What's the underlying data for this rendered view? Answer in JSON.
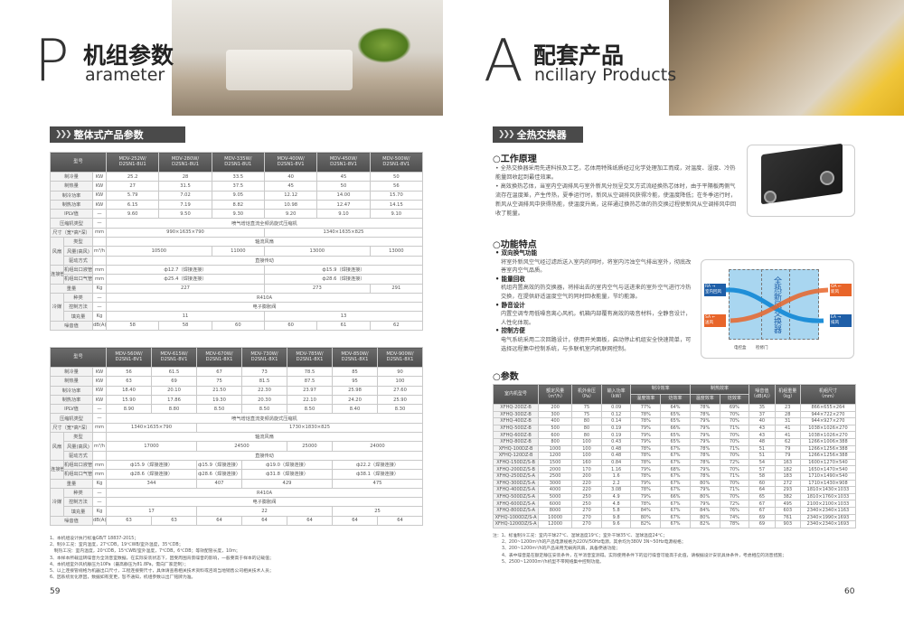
{
  "left": {
    "letter": "P",
    "title": "机组参数",
    "subtitle": "arameter",
    "section": "整体式产品参数",
    "page": "59",
    "table1": {
      "header": "型号",
      "models": [
        "MDV-252W/\nD2SN1-8U1",
        "MDV-280W/\nD2SN1-8U1",
        "MDV-335W/\nD2SN1-8U1",
        "MDV-400W/\nD2SN1-8V1",
        "MDV-450W/\nD2SN1-8V1",
        "MDV-500W/\nD2SN1-8V1"
      ],
      "rows": [
        {
          "label": "制冷量",
          "unit": "KW",
          "cells": [
            [
              "25.2",
              1
            ],
            [
              "28",
              1
            ],
            [
              "33.5",
              1
            ],
            [
              "40",
              1
            ],
            [
              "45",
              1
            ],
            [
              "50",
              1
            ]
          ]
        },
        {
          "label": "制热量",
          "unit": "KW",
          "cells": [
            [
              "27",
              1
            ],
            [
              "31.5",
              1
            ],
            [
              "37.5",
              1
            ],
            [
              "45",
              1
            ],
            [
              "50",
              1
            ],
            [
              "56",
              1
            ]
          ]
        },
        {
          "label": "制冷功率",
          "unit": "KW",
          "cells": [
            [
              "5.79",
              1
            ],
            [
              "7.02",
              1
            ],
            [
              "9.05",
              1
            ],
            [
              "12.12",
              1
            ],
            [
              "14.00",
              1
            ],
            [
              "15.70",
              1
            ]
          ]
        },
        {
          "label": "制热功率",
          "unit": "KW",
          "cells": [
            [
              "6.15",
              1
            ],
            [
              "7.19",
              1
            ],
            [
              "8.82",
              1
            ],
            [
              "10.98",
              1
            ],
            [
              "12.47",
              1
            ],
            [
              "14.15",
              1
            ]
          ]
        },
        {
          "label": "IPLV值",
          "unit": "—",
          "cells": [
            [
              "9.60",
              1
            ],
            [
              "9.50",
              1
            ],
            [
              "9.30",
              1
            ],
            [
              "9.20",
              1
            ],
            [
              "9.10",
              1
            ],
            [
              "9.10",
              1
            ]
          ]
        },
        {
          "label": "压缩机类型",
          "unit": "—",
          "cells": [
            [
              "喷气增焓直流全频涡旋式压缩机",
              6
            ]
          ]
        },
        {
          "label": "尺寸（宽*高*深）",
          "unit": "mm",
          "cells": [
            [
              "990×1635×790",
              3
            ],
            [
              "1340×1635×825",
              3
            ]
          ]
        },
        {
          "group": "风扇",
          "label": "类型",
          "unit": "",
          "cells": [
            [
              "轴流风扇",
              6
            ]
          ]
        },
        {
          "group": "风扇",
          "label": "风量(高风)",
          "unit": "m³/h",
          "cells": [
            [
              "10500",
              2
            ],
            [
              "11000",
              1
            ],
            [
              "13000",
              2
            ],
            [
              "13000",
              1
            ]
          ]
        },
        {
          "group": "风扇",
          "label": "驱动方式",
          "unit": "",
          "cells": [
            [
              "直接传动",
              6
            ]
          ]
        },
        {
          "group": "连接管",
          "label": "机组出口液管",
          "unit": "mm",
          "cells": [
            [
              "ф12.7（焊接连接）",
              3
            ],
            [
              "ф15.9（焊接连接）",
              3
            ]
          ]
        },
        {
          "group": "连接管",
          "label": "机组出口气管",
          "unit": "mm",
          "cells": [
            [
              "ф25.4（焊接连接）",
              3
            ],
            [
              "ф28.6（焊接连接）",
              3
            ]
          ]
        },
        {
          "label": "重量",
          "unit": "Kg",
          "cells": [
            [
              "227",
              3
            ],
            [
              "273",
              2
            ],
            [
              "291",
              1
            ]
          ]
        },
        {
          "group": "冷媒",
          "label": "种类",
          "unit": "—",
          "cells": [
            [
              "R410A",
              6
            ]
          ]
        },
        {
          "group": "冷媒",
          "label": "控制方法",
          "unit": "—",
          "cells": [
            [
              "电子膨胀阀",
              6
            ]
          ]
        },
        {
          "group": "冷媒",
          "label": "填充量",
          "unit": "Kg",
          "cells": [
            [
              "11",
              3
            ],
            [
              "13",
              3
            ]
          ]
        },
        {
          "label": "噪音值",
          "unit": "dB(A)",
          "cells": [
            [
              "58",
              1
            ],
            [
              "58",
              1
            ],
            [
              "60",
              1
            ],
            [
              "60",
              1
            ],
            [
              "61",
              1
            ],
            [
              "62",
              1
            ]
          ]
        }
      ]
    },
    "table2": {
      "header": "型号",
      "models": [
        "MDV-560W/\nD2SN1-8V1",
        "MDV-615W/\nD2SN1-8V1",
        "MDV-670W/\nD2SN1-8X1",
        "MDV-730W/\nD2SN1-8X1",
        "MDV-785W/\nD2SN1-8X1",
        "MDV-850W/\nD2SN1-8X1",
        "MDV-900W/\nD2SN1-8X1"
      ],
      "rows": [
        {
          "label": "制冷量",
          "unit": "KW",
          "cells": [
            [
              "56",
              1
            ],
            [
              "61.5",
              1
            ],
            [
              "67",
              1
            ],
            [
              "73",
              1
            ],
            [
              "78.5",
              1
            ],
            [
              "85",
              1
            ],
            [
              "90",
              1
            ]
          ]
        },
        {
          "label": "制热量",
          "unit": "KW",
          "cells": [
            [
              "63",
              1
            ],
            [
              "69",
              1
            ],
            [
              "75",
              1
            ],
            [
              "81.5",
              1
            ],
            [
              "87.5",
              1
            ],
            [
              "95",
              1
            ],
            [
              "100",
              1
            ]
          ]
        },
        {
          "label": "制冷功率",
          "unit": "KW",
          "cells": [
            [
              "18.40",
              1
            ],
            [
              "20.10",
              1
            ],
            [
              "21.50",
              1
            ],
            [
              "22.30",
              1
            ],
            [
              "23.97",
              1
            ],
            [
              "25.98",
              1
            ],
            [
              "27.60",
              1
            ]
          ]
        },
        {
          "label": "制热功率",
          "unit": "KW",
          "cells": [
            [
              "15.90",
              1
            ],
            [
              "17.86",
              1
            ],
            [
              "19.30",
              1
            ],
            [
              "20.30",
              1
            ],
            [
              "22.10",
              1
            ],
            [
              "24.20",
              1
            ],
            [
              "25.90",
              1
            ]
          ]
        },
        {
          "label": "IPLV值",
          "unit": "—",
          "cells": [
            [
              "8.90",
              1
            ],
            [
              "8.80",
              1
            ],
            [
              "8.50",
              1
            ],
            [
              "8.50",
              1
            ],
            [
              "8.50",
              1
            ],
            [
              "8.40",
              1
            ],
            [
              "8.30",
              1
            ]
          ]
        },
        {
          "label": "压缩机类型",
          "unit": "—",
          "cells": [
            [
              "喷气增焓直流变频涡旋式压缩机",
              7
            ]
          ]
        },
        {
          "label": "尺寸（宽*高*深）",
          "unit": "mm",
          "cells": [
            [
              "1340×1635×790",
              2
            ],
            [
              "1730×1830×825",
              5
            ]
          ]
        },
        {
          "group": "风扇",
          "label": "类型",
          "unit": "",
          "cells": [
            [
              "轴流风扇",
              7
            ]
          ]
        },
        {
          "group": "风扇",
          "label": "风量(高风)",
          "unit": "m³/h",
          "cells": [
            [
              "17000",
              2
            ],
            [
              "24500",
              2
            ],
            [
              "25000",
              1
            ],
            [
              "24000",
              2
            ]
          ]
        },
        {
          "group": "风扇",
          "label": "驱动方式",
          "unit": "",
          "cells": [
            [
              "直接传动",
              7
            ]
          ]
        },
        {
          "group": "连接管",
          "label": "机组出口液管",
          "unit": "mm",
          "cells": [
            [
              "ф15.9（焊接连接）",
              2
            ],
            [
              "ф15.9（焊接连接）",
              1
            ],
            [
              "ф19.0（焊接连接）",
              2
            ],
            [
              "ф22.2（焊接连接）",
              2
            ]
          ]
        },
        {
          "group": "连接管",
          "label": "机组出口气管",
          "unit": "mm",
          "cells": [
            [
              "ф28.6（焊接连接）",
              2
            ],
            [
              "ф28.6（焊接连接）",
              1
            ],
            [
              "ф31.8（焊接连接）",
              2
            ],
            [
              "ф38.1（焊接连接）",
              2
            ]
          ]
        },
        {
          "label": "重量",
          "unit": "Kg",
          "cells": [
            [
              "344",
              2
            ],
            [
              "407",
              1
            ],
            [
              "429",
              2
            ],
            [
              "475",
              2
            ]
          ]
        },
        {
          "group": "冷媒",
          "label": "种类",
          "unit": "—",
          "cells": [
            [
              "R410A",
              7
            ]
          ]
        },
        {
          "group": "冷媒",
          "label": "控制方法",
          "unit": "—",
          "cells": [
            [
              "电子膨胀阀",
              7
            ]
          ]
        },
        {
          "group": "冷媒",
          "label": "填充量",
          "unit": "Kg",
          "cells": [
            [
              "17",
              2
            ],
            [
              "22",
              3
            ],
            [
              "25",
              2
            ]
          ]
        },
        {
          "label": "噪音值",
          "unit": "dB(A)",
          "cells": [
            [
              "63",
              1
            ],
            [
              "63",
              1
            ],
            [
              "64",
              1
            ],
            [
              "64",
              1
            ],
            [
              "64",
              1
            ],
            [
              "64",
              1
            ],
            [
              "64",
              1
            ]
          ]
        }
      ]
    },
    "notes": [
      "1、本机组设计执行标准GB/T 18837-2015；",
      "2、制冷工况：室内温度，27℃DB，19℃WB/室外温度，35℃DB；",
      "   制热工况：室内温度，20℃DB，15℃WB/室外温度，7℃DB，6℃DB；等效配管长度，10m；",
      "3、本样本所载运转噪音为全消音室数据，在实际安装状态下，因受周围背景噪音的影响，一般要高于样本的记载值；",
      "4、本机组室外风机静压为10Pa（最高静压为81.8Pa，需向厂家定制）；",
      "5、以上连接管规格为机器出口尺寸，工程连接要尺寸，具体请查看相关技术资料或咨询当地销售公司相关技术人员；",
      "6、因系统优化原因，数据如有变更，恕不通知，机组参数以出厂铭牌为准。"
    ]
  },
  "right": {
    "letter": "A",
    "title": "配套产品",
    "subtitle": "ncillary Products",
    "section": "全热交换器",
    "page": "60",
    "principle": {
      "heading": "工作原理",
      "bullets": [
        "全热交换器采用先进科技及工艺，芯体用特殊纸质经过化学处理加工而成，对温度、湿度、冷热能量回收起到最佳效果。",
        "高效换热芯体，当室内空调排风与室外新风分别呈交叉方式流经换热芯体时，由于平隔板两侧气流存在温度差，产生传热，夏季运行时，新风从空调排风获得冷能，使温度降低；在冬季运行时，新风从空调排风中获得热能，使温度升高，这样通过换热芯体的热交换过程使新风从空调排风中回收了能量。"
      ]
    },
    "features": {
      "heading": "功能特点",
      "items": [
        {
          "title": "双向换气功能",
          "text": "将室外新风空气经过滤后送入室内的同时，将室内污浊空气排出室外，彻底改善室内空气品质。"
        },
        {
          "title": "能量回收",
          "text": "机组内置高效的热交换器，将排出去的室内空气与送进来的室外空气进行冷热交换，在提供舒适温度空气的同时回收能量，节约能源。"
        },
        {
          "title": "静音设计",
          "text": "内置空调专用低噪音离心风机，机箱内部覆有高效的吸音材料，全静音设计，人性化体现。"
        },
        {
          "title": "控制方便",
          "text": "电气系统采用二次回路设计，使用开关面板，启动停止机组安全快速简单，可选择远程集中控制系统，与多联机室内机联网控制。"
        }
      ]
    },
    "diagram": {
      "core": "全热新风交换器",
      "ra": "RA",
      "ra_sub": "室内回风",
      "oa": "OA",
      "oa_sub": "新风",
      "sa": "SA",
      "sa_sub": "送风",
      "ea": "EA",
      "ea_sub": "排风",
      "box": "电控盒",
      "door": "检修门",
      "blue": "#1f5fa8",
      "orange": "#e8652a"
    },
    "params": {
      "heading": "参数",
      "headers": {
        "model": "室内机型号",
        "airflow": "额定风量\n（m³/h）",
        "pressure": "机外余压\n（Pa）",
        "power": "输入功率\n（kW）",
        "cool": "制冷效率",
        "heat": "制热效率",
        "temp": "温度效率",
        "enthalpy": "焓效率",
        "noise": "噪音值\n（dB(A)）",
        "weight": "机组重量\n（kg）",
        "size": "机组尺寸\n（mm）"
      },
      "rows": [
        [
          "XFHQ-20DZ-B",
          "200",
          "75",
          "0.09",
          "77%",
          "64%",
          "78%",
          "69%",
          "35",
          "23",
          "866×655×264"
        ],
        [
          "XFHQ-30DZ-B",
          "300",
          "75",
          "0.12",
          "78%",
          "65%",
          "78%",
          "70%",
          "37",
          "28",
          "944×722×270"
        ],
        [
          "XFHQ-40DZ-B",
          "400",
          "80",
          "0.14",
          "78%",
          "65%",
          "79%",
          "70%",
          "40",
          "31",
          "944×927×270"
        ],
        [
          "XFHQ-50DZ-B",
          "500",
          "80",
          "0.19",
          "79%",
          "66%",
          "79%",
          "71%",
          "43",
          "41",
          "1038×1026×270"
        ],
        [
          "XFHQ-60DZ-B",
          "600",
          "80",
          "0.19",
          "79%",
          "65%",
          "79%",
          "70%",
          "43",
          "41",
          "1038×1026×270"
        ],
        [
          "XFHQ-80DZ-B",
          "800",
          "100",
          "0.43",
          "79%",
          "65%",
          "79%",
          "70%",
          "48",
          "62",
          "1266×1006×388"
        ],
        [
          "XFHQ-100DZ-B",
          "1000",
          "100",
          "0.48",
          "78%",
          "67%",
          "78%",
          "71%",
          "51",
          "79",
          "1266×1256×388"
        ],
        [
          "XFHQ-120DZ-B",
          "1200",
          "100",
          "0.48",
          "78%",
          "67%",
          "78%",
          "70%",
          "51",
          "79",
          "1266×1256×388"
        ],
        [
          "XFHQ-150DZ/S-B",
          "1500",
          "160",
          "0.84",
          "78%",
          "67%",
          "78%",
          "72%",
          "54",
          "163",
          "1600×1270×540"
        ],
        [
          "XFHQ-200DZ/S-B",
          "2000",
          "170",
          "1.16",
          "79%",
          "68%",
          "79%",
          "70%",
          "57",
          "182",
          "1650×1470×540"
        ],
        [
          "XFHQ-250DZ/S-A",
          "2500",
          "200",
          "1.6",
          "78%",
          "67%",
          "78%",
          "71%",
          "58",
          "183",
          "1710×1490×540"
        ],
        [
          "XFHQ-300DZ/S-A",
          "3000",
          "220",
          "2.2",
          "79%",
          "67%",
          "80%",
          "70%",
          "60",
          "272",
          "1710×1430×908"
        ],
        [
          "XFHQ-400DZ/S-A",
          "4000",
          "220",
          "3.08",
          "78%",
          "67%",
          "79%",
          "71%",
          "64",
          "293",
          "1810×1430×1033"
        ],
        [
          "XFHQ-500DZ/S-A",
          "5000",
          "250",
          "4.9",
          "79%",
          "66%",
          "80%",
          "70%",
          "65",
          "382",
          "1810×1760×1033"
        ],
        [
          "XFHQ-600DZ/S-A",
          "6000",
          "250",
          "4.8",
          "78%",
          "67%",
          "79%",
          "72%",
          "67",
          "495",
          "2100×2100×1033"
        ],
        [
          "XFHQ-800DZ/S-A",
          "8000",
          "270",
          "5.8",
          "84%",
          "67%",
          "84%",
          "76%",
          "67",
          "603",
          "2340×2340×1163"
        ],
        [
          "XFHQ-1000DZ/S-A",
          "10000",
          "270",
          "9.8",
          "80%",
          "67%",
          "80%",
          "74%",
          "69",
          "761",
          "2340×1990×1693"
        ],
        [
          "XFHQ-1200DZ/S-A",
          "12000",
          "270",
          "9.6",
          "82%",
          "67%",
          "82%",
          "78%",
          "69",
          "903",
          "2340×2340×1693"
        ]
      ]
    },
    "notes": [
      "注：1、标准制冷工况：室内干球27℃、湿球温度19℃；室外干球35℃、湿球温度24℃；",
      "2、200~1200m³/h的产品电源规格为220V/50Hz电源，其余均为380V 3N~50Hz电源规格；",
      "3、200~1200m³/h的产品采用无蜗壳风扇，具备便通功能；",
      "4、表中噪音是在额定静压安装条件，在半消音室测得。实际使用条件下的运行噪音可能高于此值，请根据设计安装具体条件，考虑相应的消音措施；",
      "5、2500~12000m³/h机型不带网络集中控制功能。"
    ]
  }
}
